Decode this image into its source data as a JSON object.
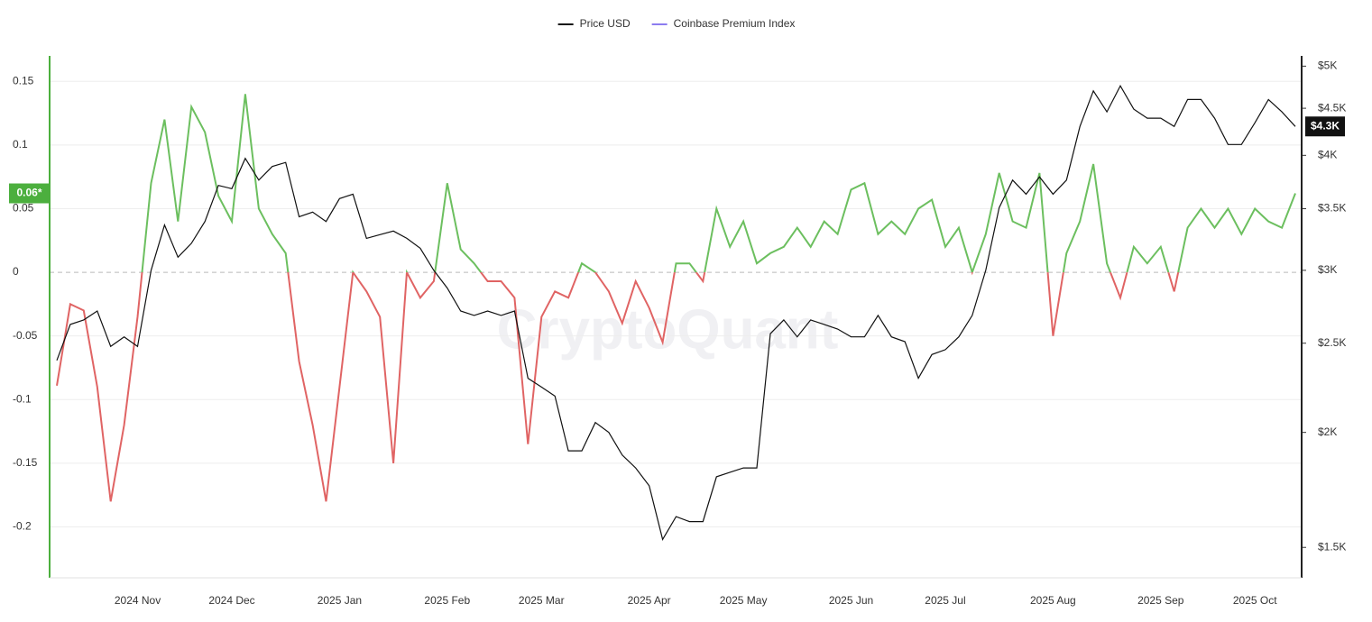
{
  "chart_data": {
    "type": "line",
    "watermark": "CryptoQuant",
    "legend": "top",
    "grid": true,
    "categories": [
      null,
      null,
      null,
      null,
      null,
      null,
      "2024 Nov",
      null,
      null,
      null,
      null,
      null,
      null,
      "2024 Dec",
      null,
      null,
      null,
      null,
      null,
      null,
      null,
      "2025 Jan",
      null,
      null,
      null,
      null,
      null,
      null,
      null,
      "2025 Feb",
      null,
      null,
      null,
      null,
      null,
      null,
      "2025 Mar",
      null,
      null,
      null,
      null,
      null,
      null,
      null,
      "2025 Apr",
      null,
      null,
      null,
      null,
      null,
      null,
      "2025 May",
      null,
      null,
      null,
      null,
      null,
      null,
      null,
      "2025 Jun",
      null,
      null,
      null,
      null,
      null,
      null,
      "2025 Jul",
      null,
      null,
      null,
      null,
      null,
      null,
      null,
      "2025 Aug",
      null,
      null,
      null,
      null,
      null,
      null,
      null,
      "2025 Sep",
      null,
      null,
      null,
      null,
      null,
      null,
      "2025 Oct",
      null,
      null,
      null
    ],
    "series": [
      {
        "name": "Price USD",
        "color": "#111111",
        "axis": "y2",
        "last_label": "$4.3K",
        "values": [
          2395,
          2620,
          2650,
          2710,
          2480,
          2540,
          2480,
          3000,
          3360,
          3100,
          3210,
          3390,
          3710,
          3680,
          3970,
          3760,
          3890,
          3930,
          3430,
          3470,
          3390,
          3590,
          3630,
          3250,
          3280,
          3310,
          3250,
          3170,
          3000,
          2870,
          2710,
          2680,
          2710,
          2680,
          2710,
          2290,
          2240,
          2190,
          1910,
          1910,
          2050,
          2000,
          1890,
          1830,
          1750,
          1530,
          1620,
          1600,
          1600,
          1790,
          1810,
          1830,
          1830,
          2560,
          2650,
          2540,
          2650,
          2620,
          2590,
          2540,
          2540,
          2680,
          2540,
          2510,
          2290,
          2430,
          2460,
          2540,
          2680,
          3000,
          3510,
          3760,
          3630,
          3790,
          3630,
          3760,
          4300,
          4700,
          4460,
          4760,
          4490,
          4390,
          4390,
          4300,
          4600,
          4600,
          4390,
          4110,
          4110,
          4340,
          4600,
          4460,
          4300
        ]
      },
      {
        "name": "Coinbase Premium Index",
        "color": "#8c7cf0",
        "positive_color": "#6cbf5f",
        "negative_color": "#e06464",
        "axis_color": "#4caf3e",
        "last_label": "0.06*",
        "values": [
          -0.089,
          -0.025,
          -0.03,
          -0.09,
          -0.18,
          -0.12,
          -0.035,
          0.07,
          0.12,
          0.04,
          0.13,
          0.11,
          0.06,
          0.04,
          0.14,
          0.05,
          0.03,
          0.015,
          -0.07,
          -0.12,
          -0.18,
          -0.09,
          0,
          -0.015,
          -0.035,
          -0.15,
          0,
          -0.02,
          -0.007,
          0.07,
          0.018,
          0.007,
          -0.007,
          -0.007,
          -0.02,
          -0.135,
          -0.035,
          -0.015,
          -0.02,
          0.007,
          0,
          -0.015,
          -0.04,
          -0.007,
          -0.028,
          -0.055,
          0.007,
          0.007,
          -0.007,
          0.05,
          0.02,
          0.04,
          0.007,
          0.015,
          0.02,
          0.035,
          0.02,
          0.04,
          0.03,
          0.065,
          0.07,
          0.03,
          0.04,
          0.03,
          0.05,
          0.057,
          0.02,
          0.035,
          0,
          0.03,
          0.078,
          0.04,
          0.035,
          0.078,
          -0.05,
          0.015,
          0.04,
          0.085,
          0.007,
          -0.02,
          0.02,
          0.007,
          0.02,
          -0.015,
          0.035,
          0.05,
          0.035,
          0.05,
          0.03,
          0.05,
          0.04,
          0.035,
          0.062
        ]
      }
    ],
    "ylim": [
      -0.24,
      0.17
    ],
    "yticks": [
      0.15,
      0.1,
      0.05,
      0,
      -0.05,
      -0.1,
      -0.15,
      -0.2
    ],
    "y2log": true,
    "y2lim": [
      1390,
      5130
    ],
    "y2ticks": [
      {
        "value": 5000,
        "label": "$5K"
      },
      {
        "value": 4500,
        "label": "$4.5K"
      },
      {
        "value": 4000,
        "label": "$4K"
      },
      {
        "value": 3500,
        "label": "$3.5K"
      },
      {
        "value": 3000,
        "label": "$3K"
      },
      {
        "value": 2500,
        "label": "$2.5K"
      },
      {
        "value": 2000,
        "label": "$2K"
      },
      {
        "value": 1500,
        "label": "$1.5K"
      }
    ]
  }
}
